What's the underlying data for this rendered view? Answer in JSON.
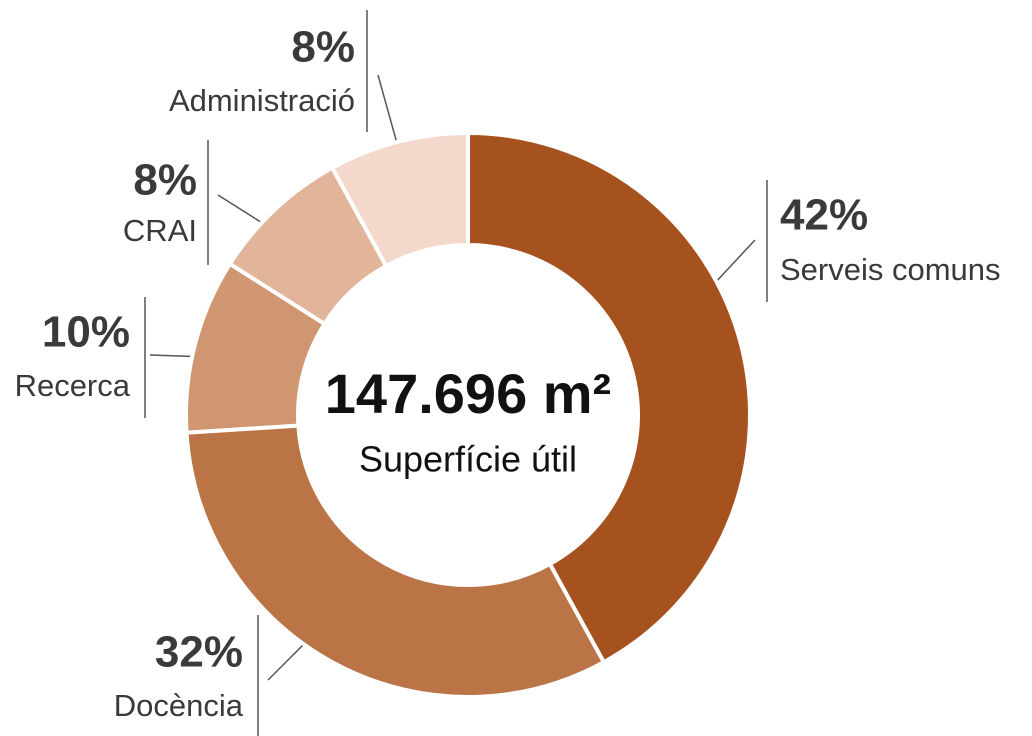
{
  "chart_data": {
    "type": "pie",
    "center_title": "147.696 m²",
    "center_subtitle": "Superfície útil",
    "categories": [
      "Serveis comuns",
      "Docència",
      "Recerca",
      "CRAI",
      "Administració"
    ],
    "values": [
      42,
      32,
      10,
      8,
      8
    ],
    "value_labels": [
      "42%",
      "32%",
      "10%",
      "8%",
      "8%"
    ],
    "colors": [
      "#a5521e",
      "#bb7446",
      "#d09672",
      "#e2b59a",
      "#f2d9cc"
    ]
  }
}
